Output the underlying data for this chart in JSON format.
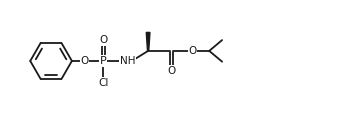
{
  "background": "#ffffff",
  "line_color": "#1a1a1a",
  "line_width": 1.3,
  "font_size": 7.5,
  "figsize": [
    3.54,
    1.32
  ],
  "dpi": 100,
  "xlim": [
    0,
    10.5
  ],
  "ylim": [
    0,
    3.7
  ]
}
